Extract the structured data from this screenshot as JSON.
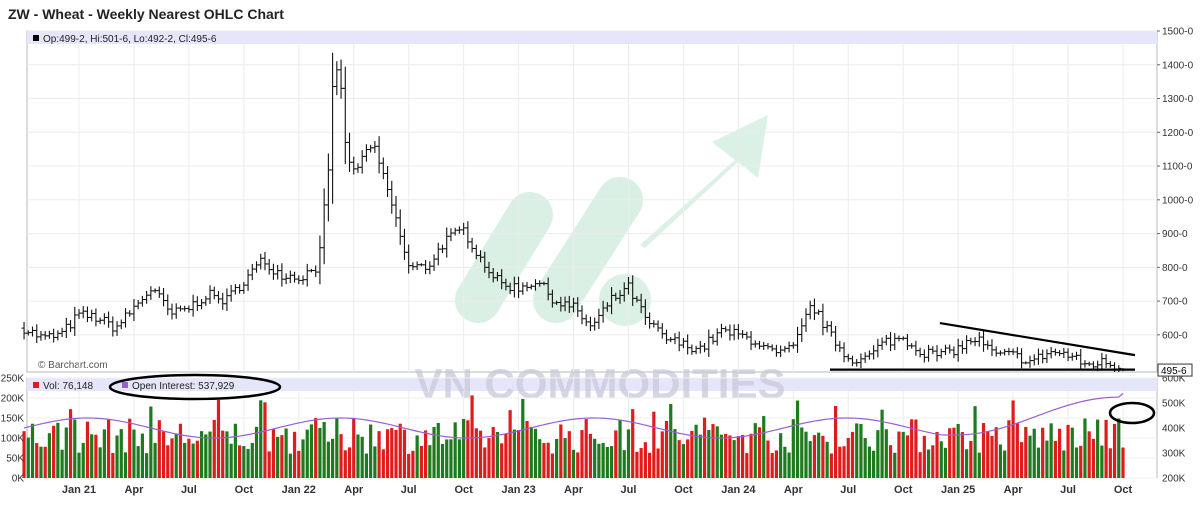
{
  "chart_title": "ZW - Wheat - Weekly Nearest OHLC Chart",
  "ohlc_legend": "Op:499-2, Hi:501-6, Lo:492-2, Cl:495-6",
  "watermark_source": "© Barchart.com",
  "watermark_brand": "VN COMMODITIES",
  "last_price_label": "495-6",
  "vol_legend": "Vol: 76,148",
  "oi_legend": "Open Interest: 537,929",
  "colors": {
    "price_bar": "#111111",
    "vol_up": "#1e7a1e",
    "vol_down": "#e01b1b",
    "open_interest": "#9a5fd0",
    "legend_band": "#e6e6fa",
    "annotation": "#000000"
  },
  "chart_data": [
    {
      "type": "ohlc",
      "title": "ZW - Wheat - Weekly Nearest OHLC Chart",
      "x_ticks": [
        "Jan 21",
        "Apr",
        "Jul",
        "Oct",
        "Jan 22",
        "Apr",
        "Jul",
        "Oct",
        "Jan 23",
        "Apr",
        "Jul",
        "Oct",
        "Jan 24",
        "Apr",
        "Jul",
        "Oct",
        "Jan 25",
        "Apr",
        "Jul",
        "Oct"
      ],
      "y_ticks": [
        "1500-0",
        "1400-0",
        "1300-0",
        "1200-0",
        "1100-0",
        "1000-0",
        "900-0",
        "800-0",
        "700-0",
        "600-0"
      ],
      "ylim": [
        490,
        1500
      ],
      "last": {
        "open": 499.25,
        "high": 501.75,
        "low": 492.25,
        "close": 495.75
      },
      "approx_close_path": [
        [
          "Oct 2020",
          620
        ],
        [
          "Nov 2020",
          590
        ],
        [
          "Dec 2020",
          600
        ],
        [
          "Jan 2021",
          660
        ],
        [
          "Feb 2021",
          650
        ],
        [
          "Mar 2021",
          620
        ],
        [
          "Apr 2021",
          680
        ],
        [
          "May 2021",
          740
        ],
        [
          "Jun 2021",
          660
        ],
        [
          "Jul 2021",
          680
        ],
        [
          "Aug 2021",
          720
        ],
        [
          "Sep 2021",
          700
        ],
        [
          "Oct 2021",
          760
        ],
        [
          "Nov 2021",
          820
        ],
        [
          "Dec 2021",
          780
        ],
        [
          "Jan 2022",
          770
        ],
        [
          "Feb 2022",
          800
        ],
        [
          "Mar 2022",
          1250
        ],
        [
          "Apr 2022",
          1080
        ],
        [
          "May 2022",
          1170
        ],
        [
          "Jun 2022",
          1000
        ],
        [
          "Jul 2022",
          800
        ],
        [
          "Aug 2022",
          800
        ],
        [
          "Sep 2022",
          880
        ],
        [
          "Oct 2022",
          910
        ],
        [
          "Nov 2022",
          820
        ],
        [
          "Dec 2022",
          750
        ],
        [
          "Jan 2023",
          740
        ],
        [
          "Feb 2023",
          760
        ],
        [
          "Mar 2023",
          700
        ],
        [
          "Apr 2023",
          680
        ],
        [
          "May 2023",
          620
        ],
        [
          "Jun 2023",
          700
        ],
        [
          "Jul 2023",
          740
        ],
        [
          "Aug 2023",
          640
        ],
        [
          "Sep 2023",
          590
        ],
        [
          "Oct 2023",
          570
        ],
        [
          "Nov 2023",
          560
        ],
        [
          "Dec 2023",
          610
        ],
        [
          "Jan 2024",
          600
        ],
        [
          "Feb 2024",
          580
        ],
        [
          "Mar 2024",
          540
        ],
        [
          "Apr 2024",
          560
        ],
        [
          "May 2024",
          690
        ],
        [
          "Jun 2024",
          600
        ],
        [
          "Jul 2024",
          530
        ],
        [
          "Aug 2024",
          530
        ],
        [
          "Sep 2024",
          580
        ],
        [
          "Oct 2024",
          590
        ],
        [
          "Nov 2024",
          550
        ],
        [
          "Dec 2024",
          540
        ],
        [
          "Jan 2025",
          560
        ],
        [
          "Feb 2025",
          590
        ],
        [
          "Mar 2025",
          540
        ],
        [
          "Apr 2025",
          540
        ],
        [
          "May 2025",
          520
        ],
        [
          "Jun 2025",
          550
        ],
        [
          "Jul 2025",
          540
        ],
        [
          "Aug 2025",
          510
        ],
        [
          "Sep 2025",
          520
        ],
        [
          "Oct 2025",
          496
        ]
      ],
      "annotations": [
        {
          "type": "resistance-trendline",
          "from": [
            "Dec 2024",
            635
          ],
          "to": [
            "Oct 2025",
            540
          ]
        },
        {
          "type": "support-line",
          "from": [
            "Jun 2024",
            497
          ],
          "to": [
            "Oct 2025",
            497
          ]
        }
      ]
    },
    {
      "type": "bar",
      "series": [
        {
          "name": "Vol: 76,148",
          "role": "volume"
        },
        {
          "name": "Open Interest: 537,929",
          "role": "open-interest"
        }
      ],
      "y_ticks_left": [
        "250K",
        "200K",
        "150K",
        "100K",
        "50K",
        "0K"
      ],
      "ylim_left": [
        0,
        250000
      ],
      "y_ticks_right": [
        "600K",
        "500K",
        "400K",
        "300K",
        "200K"
      ],
      "ylim_right": [
        200000,
        600000
      ],
      "last_volume": 76148,
      "last_open_interest": 537929
    }
  ]
}
